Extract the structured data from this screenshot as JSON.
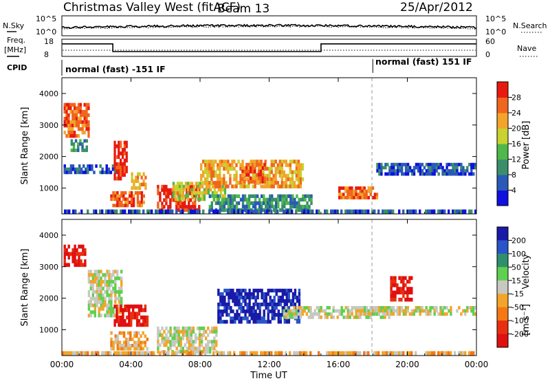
{
  "header": {
    "site": "Christmas Valley West (fitACF)",
    "beam": "Beam 13",
    "date": "25/Apr/2012"
  },
  "noise_panel": {
    "left_label": "N.Sky",
    "right_label": "N.Search",
    "ticks_left": [
      "10^5",
      "10^0"
    ],
    "ticks_right": [
      "10^5",
      "10^0"
    ]
  },
  "freq_panel": {
    "left_label_1": "Freq.",
    "left_label_2": "[MHz]",
    "right_label": "Nave",
    "ticks_left": [
      "18",
      "8"
    ],
    "ticks_right": [
      "60",
      "0"
    ]
  },
  "cpid": {
    "label": "CPID",
    "mode_1": "normal (fast) -151 IF",
    "mode_2": "normal (fast) 151 IF",
    "mode_change_hour": 18.0
  },
  "axes": {
    "xlabel": "Time UT",
    "x_ticks": [
      "00:00",
      "04:00",
      "08:00",
      "12:00",
      "16:00",
      "20:00",
      "00:00"
    ],
    "xlim_hours": [
      0,
      24
    ],
    "ylabel": "Slant Range [km]",
    "y_ticks": [
      "1000",
      "2000",
      "3000",
      "4000"
    ],
    "ylim_km": [
      180,
      4500
    ]
  },
  "power_scale": {
    "label": "Power [dB]",
    "ticks": [
      "4",
      "8",
      "12",
      "16",
      "20",
      "24",
      "28"
    ],
    "colors": [
      "#1010e0",
      "#2a5ab8",
      "#3a8f6a",
      "#4fb84a",
      "#c8d230",
      "#f2a52a",
      "#f0661e",
      "#e81a10"
    ]
  },
  "velocity_scale": {
    "label": "Velocity",
    "units": "[m s⁻¹]",
    "ticks": [
      "200",
      "100",
      "50",
      "15",
      "-15",
      "-50",
      "-100",
      "-200"
    ],
    "colors": [
      "#1a1aa8",
      "#2a55c8",
      "#2f8f6a",
      "#5fd050",
      "#c8c8c0",
      "#f2a52a",
      "#f57814",
      "#e83010",
      "#e01010"
    ]
  },
  "chart_data": {
    "type": "heatmap",
    "x_unit": "hours UT",
    "y_unit": "km",
    "freq_step": {
      "hours": [
        0,
        2.95,
        2.95,
        15.0,
        15.0,
        24
      ],
      "mhz": [
        15.3,
        15.3,
        10.8,
        10.8,
        15.3,
        15.3
      ]
    },
    "power_regions": [
      {
        "x": [
          0.1,
          1.6
        ],
        "y": [
          2600,
          3700
        ],
        "level": 6
      },
      {
        "x": [
          0.5,
          1.5
        ],
        "y": [
          2150,
          2550
        ],
        "level": 2
      },
      {
        "x": [
          0.1,
          3.5
        ],
        "y": [
          1450,
          1750
        ],
        "level": 1
      },
      {
        "x": [
          3.0,
          3.8
        ],
        "y": [
          1250,
          2500
        ],
        "level": 7
      },
      {
        "x": [
          2.8,
          4.8
        ],
        "y": [
          400,
          900
        ],
        "level": 6
      },
      {
        "x": [
          4.0,
          4.9
        ],
        "y": [
          950,
          1500
        ],
        "level": 5
      },
      {
        "x": [
          5.5,
          8.0
        ],
        "y": [
          250,
          1100
        ],
        "level": 7
      },
      {
        "x": [
          6.4,
          9.5
        ],
        "y": [
          600,
          1200
        ],
        "level": 4
      },
      {
        "x": [
          8.0,
          14.0
        ],
        "y": [
          1000,
          1900
        ],
        "level": 5
      },
      {
        "x": [
          10.4,
          11.8
        ],
        "y": [
          1150,
          1800
        ],
        "level": 6
      },
      {
        "x": [
          8.5,
          14.5
        ],
        "y": [
          250,
          800
        ],
        "level": 2
      },
      {
        "x": [
          16.0,
          18.3
        ],
        "y": [
          650,
          1050
        ],
        "level": 6
      },
      {
        "x": [
          18.2,
          24.0
        ],
        "y": [
          1400,
          1800
        ],
        "level": 1
      },
      {
        "x": [
          0.0,
          24.0
        ],
        "y": [
          180,
          320
        ],
        "level": 1
      }
    ],
    "velocity_regions": [
      {
        "x": [
          0.1,
          1.4
        ],
        "y": [
          3000,
          3700
        ],
        "level": 8
      },
      {
        "x": [
          1.5,
          3.5
        ],
        "y": [
          1400,
          2900
        ],
        "level": 4
      },
      {
        "x": [
          3.0,
          5.0
        ],
        "y": [
          1100,
          1800
        ],
        "level": 8
      },
      {
        "x": [
          2.8,
          5.0
        ],
        "y": [
          350,
          950
        ],
        "level": 5
      },
      {
        "x": [
          5.5,
          9.0
        ],
        "y": [
          250,
          1100
        ],
        "level": 4
      },
      {
        "x": [
          9.0,
          13.8
        ],
        "y": [
          1200,
          2300
        ],
        "level": 0
      },
      {
        "x": [
          12.8,
          19.0
        ],
        "y": [
          1350,
          1750
        ],
        "level": 4
      },
      {
        "x": [
          17.0,
          24.0
        ],
        "y": [
          1450,
          1750
        ],
        "level": 4
      },
      {
        "x": [
          19.0,
          20.3
        ],
        "y": [
          1900,
          2700
        ],
        "level": 8
      },
      {
        "x": [
          0.0,
          24.0
        ],
        "y": [
          180,
          320
        ],
        "level": 5
      }
    ]
  }
}
